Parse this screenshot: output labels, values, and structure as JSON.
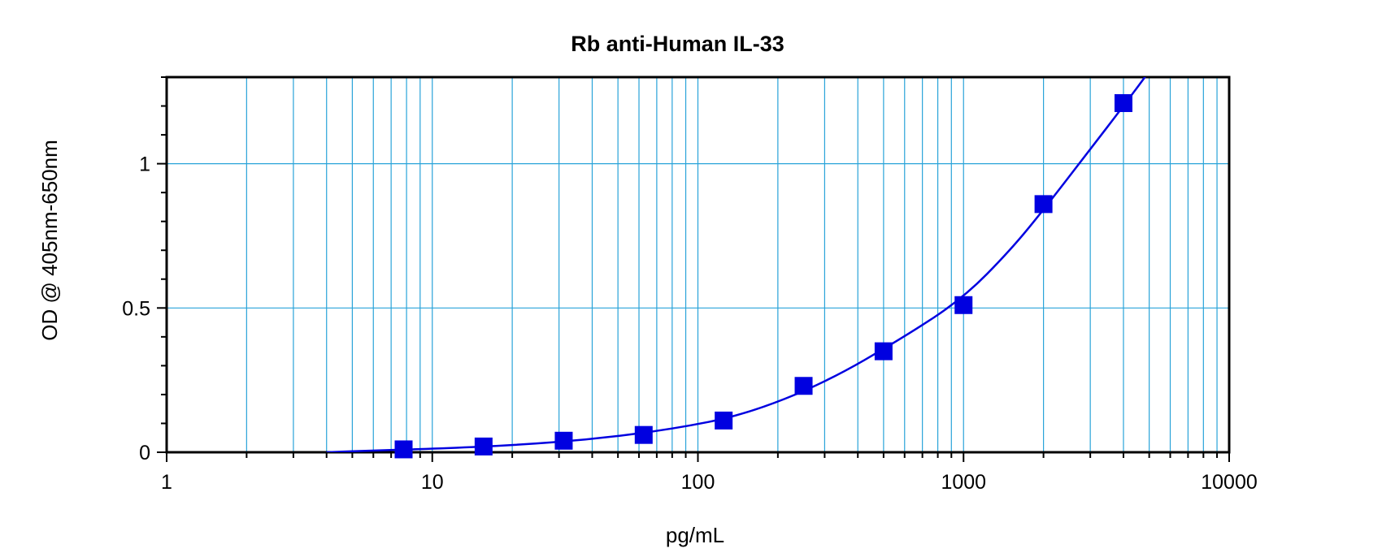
{
  "chart_data": {
    "type": "scatter",
    "title": "Rb anti-Human IL-33",
    "xlabel": "pg/mL",
    "ylabel": "OD @ 405nm-650nm",
    "x_scale": "log",
    "xlim": [
      1,
      10000
    ],
    "ylim": [
      0,
      1.3
    ],
    "x_ticks": [
      "1",
      "10",
      "100",
      "1000",
      "10000"
    ],
    "y_ticks": [
      "0",
      "0.5",
      "1"
    ],
    "grid": true,
    "colors": {
      "series": "#0000e0",
      "grid": "#29a3d9",
      "axis": "#000000"
    },
    "series": [
      {
        "x": [
          7.8,
          15.6,
          31.25,
          62.5,
          125,
          250,
          500,
          1000,
          2000,
          4000
        ],
        "y": [
          0.01,
          0.02,
          0.04,
          0.06,
          0.11,
          0.23,
          0.35,
          0.51,
          0.86,
          1.21
        ]
      }
    ],
    "fit_curve": {
      "x": [
        4,
        6,
        10,
        20,
        40,
        80,
        150,
        300,
        600,
        1000,
        1500,
        2000,
        3000,
        4000,
        5000
      ],
      "y": [
        0.0,
        0.006,
        0.012,
        0.024,
        0.045,
        0.08,
        0.13,
        0.24,
        0.4,
        0.535,
        0.7,
        0.84,
        1.05,
        1.2,
        1.32
      ]
    }
  }
}
